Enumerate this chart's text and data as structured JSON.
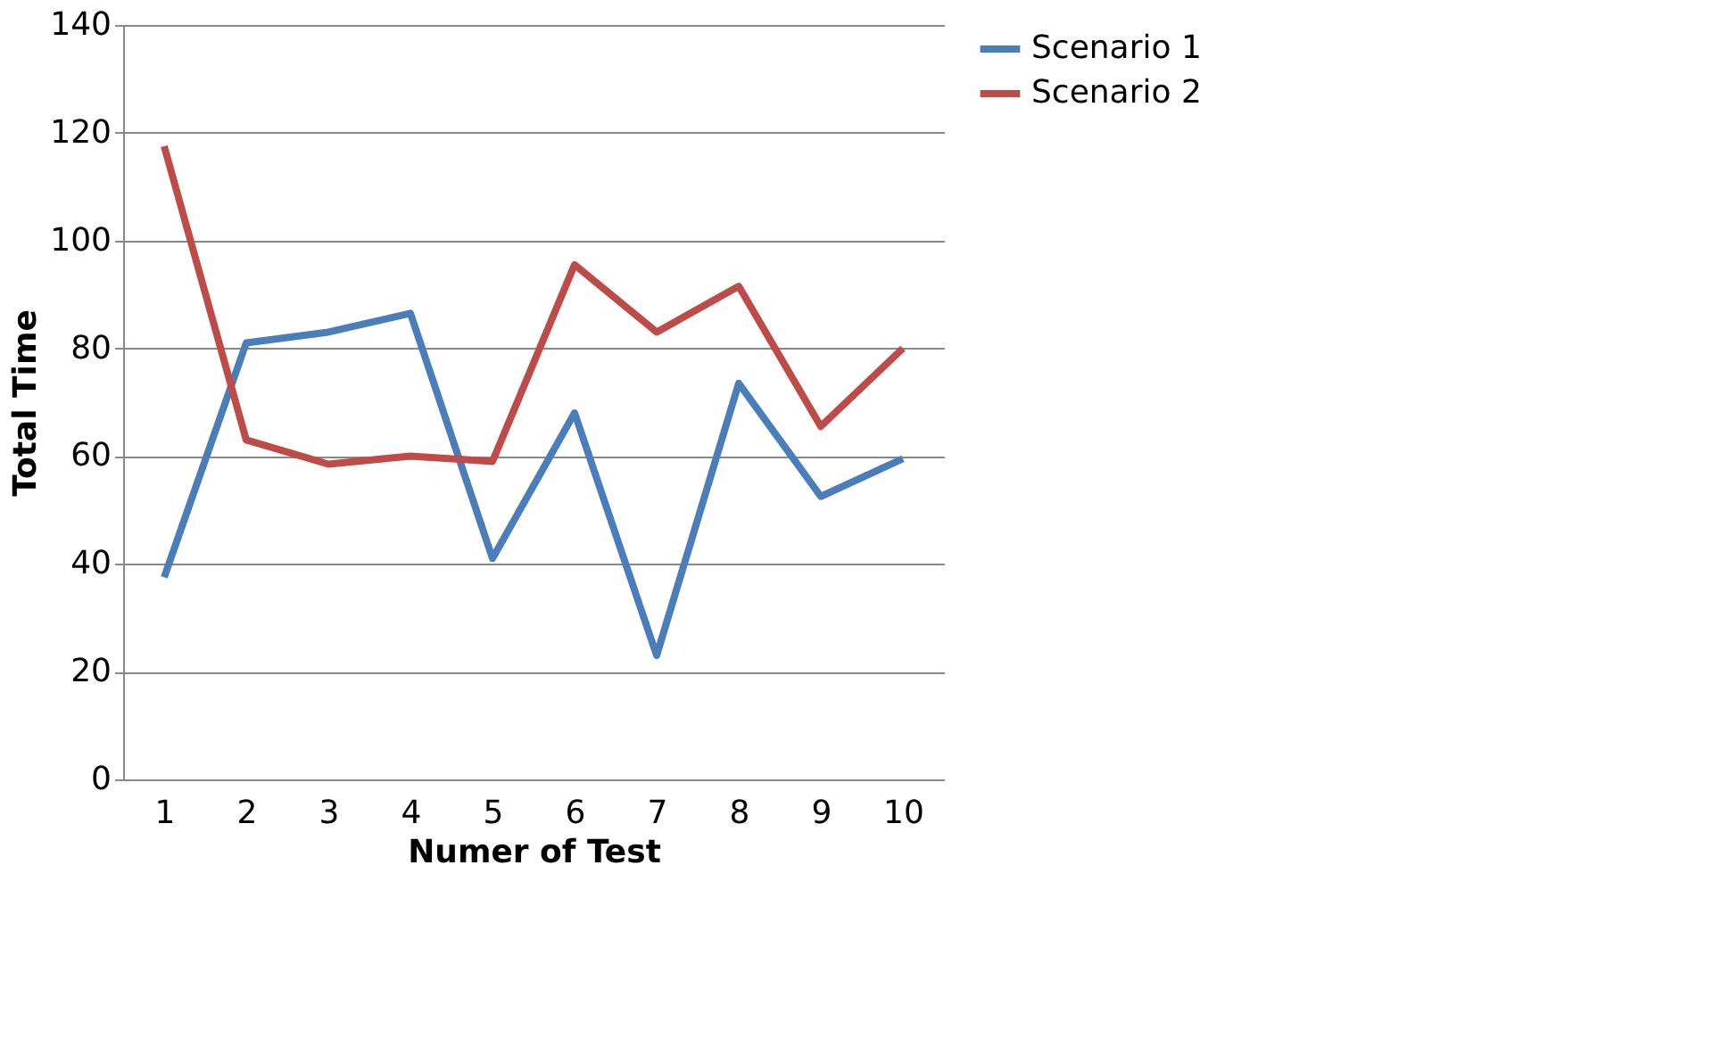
{
  "chart_data": {
    "type": "line",
    "xlabel": "Numer of Test",
    "ylabel": "Total Time",
    "categories": [
      "1",
      "2",
      "3",
      "4",
      "5",
      "6",
      "7",
      "8",
      "9",
      "10"
    ],
    "series": [
      {
        "name": "Scenario 1",
        "color": "#4a7ebb",
        "values": [
          37.5,
          81,
          83,
          86.5,
          41,
          68,
          23,
          73.5,
          52.5,
          59.5
        ]
      },
      {
        "name": "Scenario 2",
        "color": "#be4b48",
        "values": [
          117.5,
          63,
          58.5,
          60,
          59,
          95.5,
          83,
          91.5,
          65.5,
          80
        ]
      }
    ],
    "ylim": [
      0,
      140
    ],
    "yticks": [
      0,
      20,
      40,
      60,
      80,
      100,
      120,
      140
    ],
    "grid": "y",
    "legend": "right",
    "marker": "none",
    "line_style": "solid"
  }
}
